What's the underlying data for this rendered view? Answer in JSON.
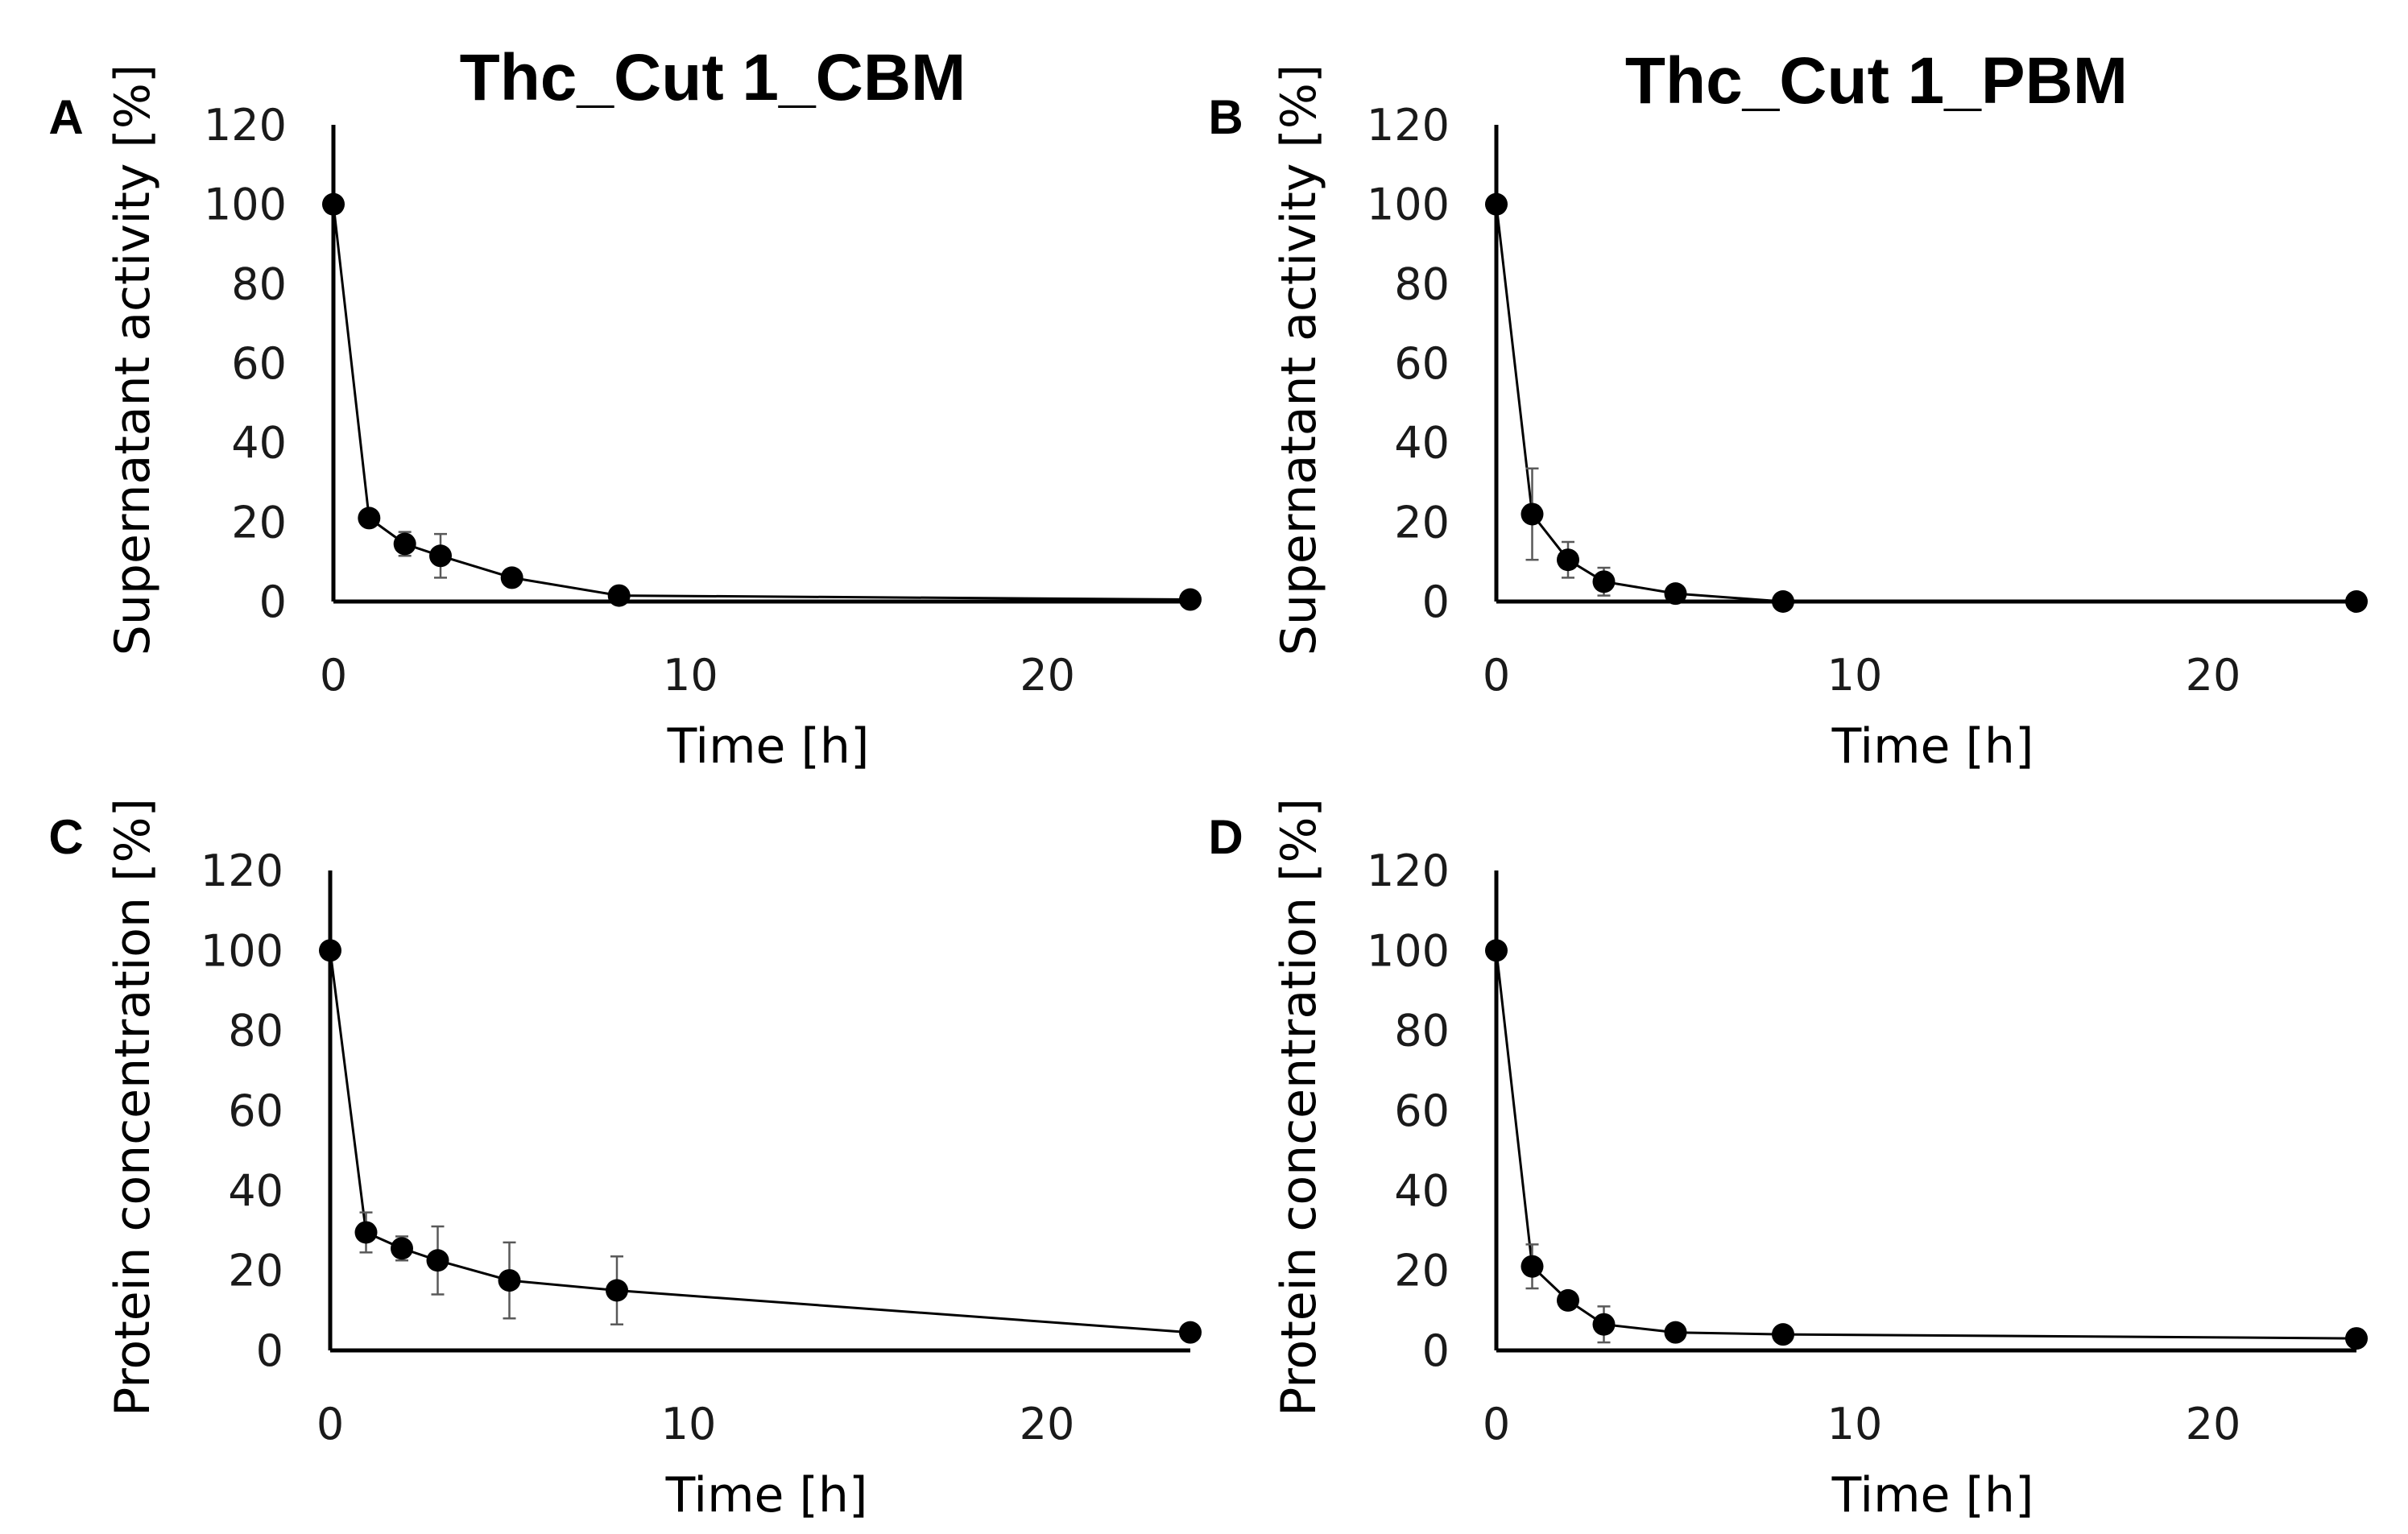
{
  "figure": {
    "column_titles": [
      "Thc_Cut 1_CBM",
      "Thc_Cut 1_PBM"
    ]
  },
  "chart_data": [
    {
      "panel": "A",
      "type": "line",
      "title": "Thc_Cut 1_CBM",
      "xlabel": "Time [h]",
      "ylabel": "Supernatant activity [%]",
      "xlim": [
        0,
        24
      ],
      "ylim": [
        0,
        120
      ],
      "xticks": [
        0,
        10,
        20
      ],
      "yticks": [
        0,
        20,
        40,
        60,
        80,
        100,
        120
      ],
      "grid": false,
      "series": [
        {
          "name": "Supernatant activity",
          "x": [
            0,
            1,
            2,
            3,
            5,
            8,
            24
          ],
          "y": [
            100,
            21,
            14.5,
            11.5,
            6,
            1.5,
            0.5
          ],
          "error": [
            0,
            2,
            3,
            5.5,
            1,
            1,
            0
          ]
        }
      ]
    },
    {
      "panel": "B",
      "type": "line",
      "title": "Thc_Cut 1_PBM",
      "xlabel": "Time [h]",
      "ylabel": "Supernatant activity [%]",
      "xlim": [
        0,
        24
      ],
      "ylim": [
        0,
        120
      ],
      "xticks": [
        0,
        10,
        20
      ],
      "yticks": [
        0,
        20,
        40,
        60,
        80,
        100,
        120
      ],
      "grid": false,
      "series": [
        {
          "name": "Supernatant activity",
          "x": [
            0,
            1,
            2,
            3,
            5,
            8,
            24
          ],
          "y": [
            100,
            22,
            10.5,
            5,
            2,
            0,
            0
          ],
          "error": [
            0,
            11.5,
            4.5,
            3.5,
            1,
            0,
            0
          ]
        }
      ]
    },
    {
      "panel": "C",
      "type": "line",
      "title": "",
      "xlabel": "Time [h]",
      "ylabel": "Protein concentration [%]",
      "xlim": [
        0,
        24
      ],
      "ylim": [
        0,
        120
      ],
      "xticks": [
        0,
        10,
        20
      ],
      "yticks": [
        0,
        20,
        40,
        60,
        80,
        100,
        120
      ],
      "grid": false,
      "series": [
        {
          "name": "Protein concentration",
          "x": [
            0,
            1,
            2,
            3,
            5,
            8,
            24
          ],
          "y": [
            100,
            29.5,
            25.5,
            22.5,
            17.5,
            15,
            4.5
          ],
          "error": [
            0,
            5,
            3,
            8.5,
            9.5,
            8.5,
            0
          ]
        }
      ]
    },
    {
      "panel": "D",
      "type": "line",
      "title": "",
      "xlabel": "Time [h]",
      "ylabel": "Protein concentration [%]",
      "xlim": [
        0,
        24
      ],
      "ylim": [
        0,
        120
      ],
      "xticks": [
        0,
        10,
        20
      ],
      "yticks": [
        0,
        20,
        40,
        60,
        80,
        100,
        120
      ],
      "grid": false,
      "series": [
        {
          "name": "Protein concentration",
          "x": [
            0,
            1,
            2,
            3,
            5,
            8,
            24
          ],
          "y": [
            100,
            21,
            12.5,
            6.5,
            4.5,
            4,
            3
          ],
          "error": [
            0,
            5.5,
            2,
            4.5,
            0.5,
            0.5,
            0
          ]
        }
      ]
    }
  ]
}
